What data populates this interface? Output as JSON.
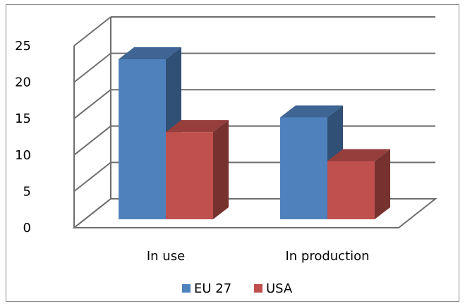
{
  "chart_data": {
    "type": "bar",
    "style": "3d-clustered-column",
    "categories": [
      "In use",
      "In production"
    ],
    "series": [
      {
        "name": "EU 27",
        "values": [
          22,
          14
        ],
        "color": "#4f81bd"
      },
      {
        "name": "USA",
        "values": [
          12,
          8
        ],
        "color": "#c0504d"
      }
    ],
    "ylim": [
      0,
      25
    ],
    "yticks": [
      "0",
      "5",
      "10",
      "15",
      "20",
      "25"
    ],
    "grid": true,
    "legend_position": "bottom"
  }
}
